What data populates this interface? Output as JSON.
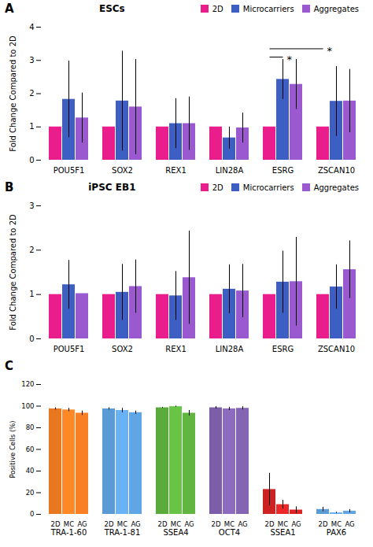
{
  "chart_data": [
    {
      "type": "bar",
      "panel_label": "A",
      "title": "ESCs",
      "ylabel": "Fold Change Compared to 2D",
      "categories": [
        "POU5F1",
        "SOX2",
        "REX1",
        "LIN28A",
        "ESRG",
        "ZSCAN10"
      ],
      "series": [
        {
          "name": "2D",
          "color": "#E91E8C",
          "values": [
            1.0,
            1.0,
            1.0,
            1.0,
            1.0,
            1.0
          ],
          "errors": [
            0.0,
            0.0,
            0.0,
            0.0,
            0.0,
            0.0
          ]
        },
        {
          "name": "Microcarriers",
          "color": "#3D5FC4",
          "values": [
            1.83,
            1.78,
            1.1,
            0.67,
            2.43,
            1.77
          ],
          "errors": [
            1.15,
            1.5,
            0.75,
            0.33,
            0.6,
            1.05
          ]
        },
        {
          "name": "Aggregates",
          "color": "#9B59D0",
          "values": [
            1.27,
            1.6,
            1.1,
            0.97,
            2.28,
            1.78
          ],
          "errors": [
            0.75,
            1.43,
            0.8,
            0.45,
            0.75,
            0.95
          ]
        }
      ],
      "ylim": [
        0,
        4
      ],
      "yticks": [
        0,
        1,
        2,
        3,
        4
      ],
      "legend": "upper right",
      "annotations": [
        {
          "text": "*",
          "y": 3.1,
          "from": [
            "ESRG",
            "2D"
          ],
          "to": [
            "ESRG",
            "Microcarriers"
          ]
        },
        {
          "text": "*",
          "y": 3.35,
          "from": [
            "ESRG",
            "2D"
          ],
          "to": [
            "ZSCAN10",
            "2D"
          ]
        }
      ]
    },
    {
      "type": "bar",
      "panel_label": "B",
      "title": "iPSC EB1",
      "ylabel": "Fold Change Compared to 2D",
      "categories": [
        "POU5F1",
        "SOX2",
        "REX1",
        "LIN28A",
        "ESRG",
        "ZSCAN10"
      ],
      "series": [
        {
          "name": "2D",
          "color": "#E91E8C",
          "values": [
            1.0,
            1.0,
            1.0,
            1.0,
            1.0,
            1.0
          ],
          "errors": [
            0.0,
            0.0,
            0.0,
            0.0,
            0.0,
            0.0
          ]
        },
        {
          "name": "Microcarriers",
          "color": "#3D5FC4",
          "values": [
            1.22,
            1.05,
            0.97,
            1.12,
            1.28,
            1.17
          ],
          "errors": [
            0.55,
            0.63,
            0.55,
            0.55,
            0.7,
            0.5
          ]
        },
        {
          "name": "Aggregates",
          "color": "#9B59D0",
          "values": [
            1.02,
            1.18,
            1.38,
            1.08,
            1.29,
            1.56
          ],
          "errors": [
            0.0,
            0.6,
            1.05,
            0.6,
            1.0,
            0.65
          ]
        }
      ],
      "ylim": [
        0,
        3
      ],
      "yticks": [
        0,
        1,
        2,
        3
      ],
      "legend": "upper right"
    },
    {
      "type": "bar",
      "panel_label": "C",
      "ylabel": "Positive Cells (%)",
      "categories": [
        "TRA-1-60",
        "TRA-1-81",
        "SSEA4",
        "OCT4",
        "SSEA1",
        "PAX6"
      ],
      "series": [
        {
          "name": "2D",
          "colors": [
            "#E87722",
            "#5B9BD5",
            "#5AAA3C",
            "#7B5EA7",
            "#CC2222",
            "#5B9BD5"
          ],
          "values": [
            97.5,
            97.5,
            98.5,
            98.5,
            23.0,
            4.5
          ],
          "errors": [
            1.0,
            1.0,
            0.5,
            1.0,
            15.0,
            2.0
          ]
        },
        {
          "name": "MC",
          "colors": [
            "#FF8927",
            "#69B2F5",
            "#68C445",
            "#8D6CC0",
            "#EB2727",
            "#69B2F5"
          ],
          "values": [
            96.5,
            96.0,
            99.5,
            97.5,
            9.0,
            1.5
          ],
          "errors": [
            1.5,
            2.0,
            0.5,
            1.5,
            4.0,
            0.5
          ]
        },
        {
          "name": "AG",
          "colors": [
            "#F87F24",
            "#61A6E4",
            "#60B640",
            "#8465B3",
            "#DA2424",
            "#61A6E4"
          ],
          "values": [
            93.5,
            94.0,
            93.5,
            98.0,
            4.0,
            3.0
          ],
          "errors": [
            2.0,
            1.5,
            2.5,
            1.5,
            3.0,
            1.5
          ]
        }
      ],
      "ylim": [
        0,
        120
      ],
      "yticks": [
        0,
        20,
        40,
        60,
        80,
        100,
        120
      ]
    }
  ]
}
